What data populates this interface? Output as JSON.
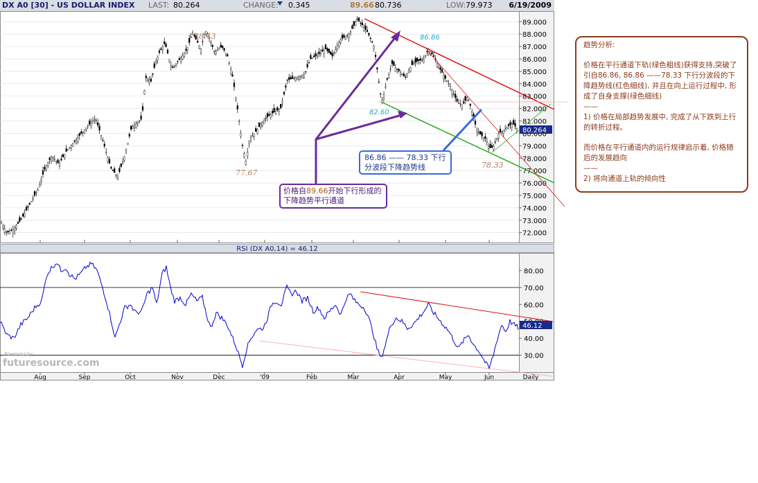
{
  "header": {
    "symbol": "DX A0 [30] - US DOLLAR INDEX",
    "last_label": "LAST:",
    "last": "80.264",
    "change_label": "CHANGE:",
    "change": "0.345",
    "high": "89.66",
    "open": "80.736",
    "low_label": "LOW:",
    "low": "79.973",
    "date": "6/19/2009"
  },
  "chart_data": [
    {
      "type": "candlestick",
      "title": "DX A0 [30] - US DOLLAR INDEX",
      "ylim": [
        71.2,
        89.8
      ],
      "y_ticks": [
        "89.000",
        "88.000",
        "87.000",
        "86.000",
        "85.000",
        "84.000",
        "83.000",
        "82.000",
        "81.000",
        "80.000",
        "79.000",
        "78.000",
        "77.000",
        "76.000",
        "75.000",
        "74.000",
        "73.000",
        "72.000"
      ],
      "last_value": "80.264",
      "x_ticks": [
        "Aug",
        "Sep",
        "Oct",
        "Nov",
        "Dec",
        "'09",
        "Feb",
        "Mar",
        "Apr",
        "May",
        "Jun",
        "Daily"
      ],
      "anchor_points": [
        [
          0,
          73.0
        ],
        [
          10,
          72.0
        ],
        [
          18,
          72.2
        ],
        [
          30,
          73.0
        ],
        [
          38,
          73.8
        ],
        [
          45,
          74.5
        ],
        [
          55,
          75.5
        ],
        [
          65,
          77.2
        ],
        [
          75,
          78.2
        ],
        [
          85,
          77.5
        ],
        [
          95,
          78.5
        ],
        [
          110,
          79.5
        ],
        [
          125,
          80.5
        ],
        [
          138,
          81.2
        ],
        [
          148,
          79.5
        ],
        [
          160,
          77.2
        ],
        [
          170,
          76.5
        ],
        [
          180,
          78.2
        ],
        [
          190,
          80.5
        ],
        [
          205,
          81.2
        ],
        [
          210,
          84.5
        ],
        [
          218,
          84.2
        ],
        [
          225,
          85.8
        ],
        [
          230,
          86.5
        ],
        [
          238,
          87.3
        ],
        [
          248,
          85.2
        ],
        [
          260,
          86.0
        ],
        [
          270,
          86.8
        ],
        [
          278,
          88.1
        ],
        [
          290,
          86.8
        ],
        [
          296,
          88.3
        ],
        [
          300,
          88.0
        ],
        [
          310,
          86.5
        ],
        [
          320,
          87.0
        ],
        [
          328,
          86.3
        ],
        [
          336,
          84.5
        ],
        [
          344,
          81.5
        ],
        [
          350,
          79.0
        ],
        [
          355,
          77.7
        ],
        [
          360,
          79.5
        ],
        [
          370,
          80.2
        ],
        [
          380,
          81.0
        ],
        [
          390,
          81.5
        ],
        [
          398,
          81.8
        ],
        [
          405,
          82.0
        ],
        [
          415,
          84.3
        ],
        [
          428,
          84.5
        ],
        [
          440,
          84.8
        ],
        [
          448,
          86.0
        ],
        [
          458,
          86.3
        ],
        [
          470,
          86.8
        ],
        [
          480,
          86.2
        ],
        [
          490,
          87.5
        ],
        [
          498,
          87.8
        ],
        [
          505,
          88.1
        ],
        [
          510,
          88.6
        ],
        [
          515,
          89.2
        ],
        [
          522,
          88.8
        ],
        [
          530,
          88.2
        ],
        [
          540,
          87.0
        ],
        [
          546,
          84.5
        ],
        [
          549,
          83.2
        ],
        [
          552,
          82.6
        ],
        [
          558,
          84.2
        ],
        [
          566,
          85.6
        ],
        [
          576,
          85.0
        ],
        [
          585,
          84.5
        ],
        [
          594,
          85.5
        ],
        [
          602,
          85.8
        ],
        [
          612,
          86.0
        ],
        [
          618,
          86.8
        ],
        [
          625,
          86.3
        ],
        [
          634,
          85.3
        ],
        [
          642,
          84.5
        ],
        [
          650,
          83.8
        ],
        [
          660,
          82.5
        ],
        [
          668,
          82.3
        ],
        [
          675,
          83.0
        ],
        [
          680,
          82.0
        ],
        [
          688,
          80.3
        ],
        [
          695,
          79.8
        ],
        [
          702,
          79.5
        ],
        [
          706,
          78.8
        ],
        [
          712,
          78.9
        ],
        [
          720,
          80.0
        ],
        [
          728,
          80.3
        ],
        [
          734,
          80.6
        ],
        [
          740,
          80.8
        ],
        [
          748,
          80.264
        ]
      ],
      "labels": [
        "88.43",
        "77.67",
        "89.66",
        "86.86",
        "82.60",
        "78.33"
      ]
    },
    {
      "type": "line",
      "title": "RSI (DX A0,14) = 46.12",
      "ylim": [
        20,
        90
      ],
      "y_ticks": [
        "80.00",
        "70.00",
        "60.00",
        "50.00",
        "40.00",
        "30.00"
      ],
      "reference_lines": [
        70,
        30
      ],
      "last_value": "46.12",
      "anchor_points": [
        [
          0,
          50
        ],
        [
          10,
          42
        ],
        [
          20,
          40
        ],
        [
          30,
          48
        ],
        [
          40,
          52
        ],
        [
          50,
          58
        ],
        [
          60,
          62
        ],
        [
          68,
          78
        ],
        [
          75,
          82
        ],
        [
          82,
          85
        ],
        [
          88,
          80
        ],
        [
          95,
          82
        ],
        [
          100,
          78
        ],
        [
          108,
          75
        ],
        [
          116,
          78
        ],
        [
          124,
          82
        ],
        [
          132,
          84
        ],
        [
          140,
          80
        ],
        [
          148,
          70
        ],
        [
          155,
          60
        ],
        [
          162,
          48
        ],
        [
          166,
          40
        ],
        [
          172,
          48
        ],
        [
          180,
          58
        ],
        [
          188,
          60
        ],
        [
          196,
          55
        ],
        [
          205,
          56
        ],
        [
          212,
          66
        ],
        [
          220,
          70
        ],
        [
          226,
          60
        ],
        [
          234,
          78
        ],
        [
          240,
          82
        ],
        [
          246,
          70
        ],
        [
          252,
          62
        ],
        [
          260,
          64
        ],
        [
          268,
          60
        ],
        [
          276,
          66
        ],
        [
          284,
          62
        ],
        [
          292,
          64
        ],
        [
          298,
          54
        ],
        [
          304,
          46
        ],
        [
          312,
          55
        ],
        [
          320,
          52
        ],
        [
          328,
          48
        ],
        [
          334,
          42
        ],
        [
          340,
          36
        ],
        [
          345,
          30
        ],
        [
          350,
          24
        ],
        [
          356,
          34
        ],
        [
          362,
          40
        ],
        [
          370,
          45
        ],
        [
          380,
          46
        ],
        [
          386,
          52
        ],
        [
          392,
          60
        ],
        [
          398,
          62
        ],
        [
          406,
          60
        ],
        [
          414,
          70
        ],
        [
          420,
          66
        ],
        [
          428,
          68
        ],
        [
          436,
          62
        ],
        [
          444,
          64
        ],
        [
          452,
          56
        ],
        [
          460,
          58
        ],
        [
          468,
          52
        ],
        [
          476,
          56
        ],
        [
          484,
          60
        ],
        [
          492,
          54
        ],
        [
          500,
          64
        ],
        [
          506,
          66
        ],
        [
          512,
          62
        ],
        [
          518,
          60
        ],
        [
          526,
          58
        ],
        [
          532,
          52
        ],
        [
          538,
          44
        ],
        [
          544,
          34
        ],
        [
          550,
          28
        ],
        [
          556,
          36
        ],
        [
          564,
          48
        ],
        [
          572,
          52
        ],
        [
          580,
          50
        ],
        [
          588,
          46
        ],
        [
          596,
          48
        ],
        [
          604,
          52
        ],
        [
          612,
          56
        ],
        [
          618,
          60
        ],
        [
          624,
          56
        ],
        [
          632,
          52
        ],
        [
          640,
          48
        ],
        [
          648,
          44
        ],
        [
          656,
          38
        ],
        [
          662,
          34
        ],
        [
          668,
          38
        ],
        [
          676,
          42
        ],
        [
          684,
          36
        ],
        [
          692,
          32
        ],
        [
          700,
          26
        ],
        [
          706,
          22
        ],
        [
          712,
          30
        ],
        [
          718,
          40
        ],
        [
          724,
          48
        ],
        [
          730,
          44
        ],
        [
          736,
          50
        ],
        [
          742,
          48
        ],
        [
          748,
          46.12
        ]
      ]
    }
  ],
  "callouts": {
    "purple_line1_pre": "价格自",
    "purple_value": "89.66",
    "purple_line1_post": "开始下行形成的",
    "purple_line2": "下降趋势平行通道",
    "blue_line1": "86.86 —— 78.33 下行",
    "blue_line2": "分波段下降趋势线"
  },
  "notes": {
    "title": "趋势分析:",
    "p1": "价格在平行通道下轨(绿色粗线)获得支持,突破了引自86.86, 86.86 ——78.33 下行分波段的下降趋势线(红色细线), 并且在向上运行过程中, 形成了自身支撑(绿色细线)",
    "sep1": "——",
    "p2": "1) 价格在局部趋势发展中, 完成了从下跌到上行的转折过程。",
    "p3": "而价格在平行通道内的运行规律启示着, 价格随后的发展趋向",
    "sep2": "——",
    "p4": "2) 将向通道上轨的倾向性"
  },
  "watermark": {
    "powered": "Powered by",
    "brand": "futuresource.com"
  },
  "colors": {
    "price": "#000000",
    "rsi": "#0000cc",
    "red_line": "#dd1111",
    "green_line": "#22aa22",
    "purple": "#6a2a9a",
    "blue": "#3a6ad8",
    "note_border": "#8b3a1a",
    "value_box": "#1a2a8a"
  }
}
